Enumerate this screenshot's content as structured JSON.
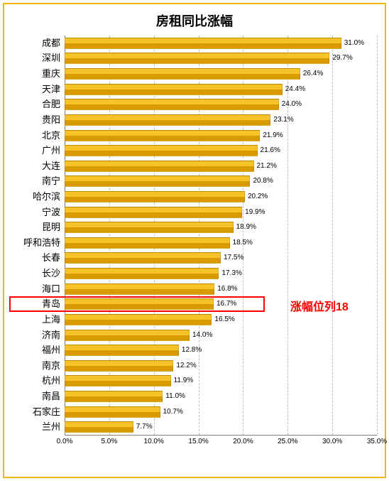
{
  "chart": {
    "type": "bar-horizontal",
    "title": "房租同比涨幅",
    "title_fontsize": 18,
    "title_color": "#000000",
    "border_color": "#f5b800",
    "background_color": "#ffffff",
    "bar_color_top": "#f6c32a",
    "bar_color_bottom": "#d99a00",
    "grid_color": "#bfbfbf",
    "axis_color": "#808080",
    "label_fontsize": 13,
    "value_fontsize": 10,
    "tick_fontsize": 10,
    "xmin": 0.0,
    "xmax": 35.0,
    "xtick_step": 5.0,
    "xticks": [
      "0.0%",
      "5.0%",
      "10.0%",
      "15.0%",
      "20.0%",
      "25.0%",
      "30.0%",
      "35.0%"
    ],
    "categories": [
      "成都",
      "深圳",
      "重庆",
      "天津",
      "合肥",
      "贵阳",
      "北京",
      "广州",
      "大连",
      "南宁",
      "哈尔滨",
      "宁波",
      "昆明",
      "呼和浩特",
      "长春",
      "长沙",
      "海口",
      "青岛",
      "上海",
      "济南",
      "福州",
      "南京",
      "杭州",
      "南昌",
      "石家庄",
      "兰州"
    ],
    "values": [
      31.0,
      29.7,
      26.4,
      24.4,
      24.0,
      23.1,
      21.9,
      21.6,
      21.2,
      20.8,
      20.2,
      19.9,
      18.9,
      18.5,
      17.5,
      17.3,
      16.8,
      16.7,
      16.5,
      14.0,
      12.8,
      12.2,
      11.9,
      11.0,
      10.7,
      7.7
    ],
    "value_labels": [
      "31.0%",
      "29.7%",
      "26.4%",
      "24.4%",
      "24.0%",
      "23.1%",
      "21.9%",
      "21.6%",
      "21.2%",
      "20.8%",
      "20.2%",
      "19.9%",
      "18.9%",
      "18.5%",
      "17.5%",
      "17.3%",
      "16.8%",
      "16.7%",
      "16.5%",
      "14.0%",
      "12.8%",
      "12.2%",
      "11.9%",
      "11.0%",
      "10.7%",
      "7.7%"
    ],
    "highlight": {
      "index": 17,
      "box_color": "#ff0000",
      "annotation_text": "涨幅位列18",
      "annotation_color": "#ff0000",
      "annotation_fontsize": 16
    }
  }
}
